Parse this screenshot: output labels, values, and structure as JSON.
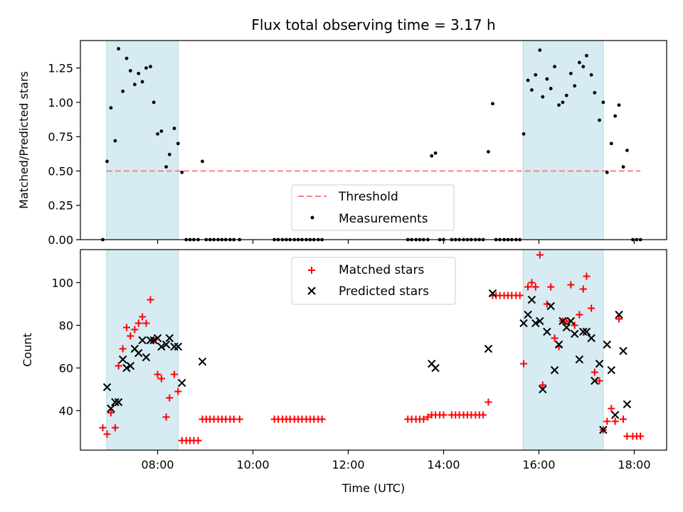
{
  "chart_data": {
    "type": "scatter",
    "title": "Flux total observing time = 3.17 h",
    "xlabel": "Time (UTC)",
    "x_ticks": [
      "08:00",
      "10:00",
      "12:00",
      "14:00",
      "16:00",
      "18:00"
    ],
    "x_tick_hours": [
      8,
      10,
      12,
      14,
      16,
      18
    ],
    "xlim_hours": [
      6.38,
      18.68
    ],
    "shaded_intervals_hours": [
      [
        6.93,
        8.43
      ],
      [
        15.67,
        17.35
      ]
    ],
    "shade_color": "#add8e6",
    "top_panel": {
      "ylabel": "Matched/Predicted stars",
      "ylim": [
        0,
        1.45
      ],
      "y_ticks": [
        "0.00",
        "0.25",
        "0.50",
        "0.75",
        "1.00",
        "1.25"
      ],
      "y_tick_values": [
        0,
        0.25,
        0.5,
        0.75,
        1.0,
        1.25
      ],
      "threshold": {
        "name": "Threshold",
        "value": 0.5,
        "x_range": [
          6.93,
          18.13
        ],
        "color": "#ff8080"
      },
      "measurements_name": "Measurements",
      "measurements_color": "#000000",
      "legend_position": "lower center",
      "measurements": [
        [
          6.85,
          0
        ],
        [
          6.94,
          0.57
        ],
        [
          7.02,
          0.96
        ],
        [
          7.11,
          0.72
        ],
        [
          7.18,
          1.39
        ],
        [
          7.27,
          1.08
        ],
        [
          7.35,
          1.32
        ],
        [
          7.43,
          1.23
        ],
        [
          7.52,
          1.13
        ],
        [
          7.6,
          1.21
        ],
        [
          7.68,
          1.15
        ],
        [
          7.76,
          1.25
        ],
        [
          7.85,
          1.26
        ],
        [
          7.92,
          1.0
        ],
        [
          8.0,
          0.77
        ],
        [
          8.08,
          0.79
        ],
        [
          8.18,
          0.53
        ],
        [
          8.25,
          0.62
        ],
        [
          8.35,
          0.81
        ],
        [
          8.43,
          0.7
        ],
        [
          8.51,
          0.49
        ],
        [
          8.6,
          0
        ],
        [
          8.68,
          0
        ],
        [
          8.76,
          0
        ],
        [
          8.85,
          0
        ],
        [
          8.94,
          0.57
        ],
        [
          9.02,
          0
        ],
        [
          9.1,
          0
        ],
        [
          9.18,
          0
        ],
        [
          9.27,
          0
        ],
        [
          9.35,
          0
        ],
        [
          9.43,
          0
        ],
        [
          9.52,
          0
        ],
        [
          9.6,
          0
        ],
        [
          9.72,
          0
        ],
        [
          10.45,
          0
        ],
        [
          10.53,
          0
        ],
        [
          10.62,
          0
        ],
        [
          10.7,
          0
        ],
        [
          10.78,
          0
        ],
        [
          10.87,
          0
        ],
        [
          10.95,
          0
        ],
        [
          11.03,
          0
        ],
        [
          11.12,
          0
        ],
        [
          11.2,
          0
        ],
        [
          11.28,
          0
        ],
        [
          11.37,
          0
        ],
        [
          11.45,
          0
        ],
        [
          13.25,
          0
        ],
        [
          13.33,
          0
        ],
        [
          13.42,
          0
        ],
        [
          13.5,
          0
        ],
        [
          13.58,
          0
        ],
        [
          13.67,
          0
        ],
        [
          13.75,
          0.61
        ],
        [
          13.83,
          0.63
        ],
        [
          13.92,
          0
        ],
        [
          14.0,
          0
        ],
        [
          14.17,
          0
        ],
        [
          14.25,
          0
        ],
        [
          14.33,
          0
        ],
        [
          14.42,
          0
        ],
        [
          14.5,
          0
        ],
        [
          14.58,
          0
        ],
        [
          14.67,
          0
        ],
        [
          14.75,
          0
        ],
        [
          14.83,
          0
        ],
        [
          14.94,
          0.64
        ],
        [
          15.03,
          0.99
        ],
        [
          15.1,
          0
        ],
        [
          15.18,
          0
        ],
        [
          15.27,
          0
        ],
        [
          15.35,
          0
        ],
        [
          15.43,
          0
        ],
        [
          15.52,
          0
        ],
        [
          15.6,
          0
        ],
        [
          15.68,
          0.77
        ],
        [
          15.77,
          1.16
        ],
        [
          15.85,
          1.09
        ],
        [
          15.93,
          1.2
        ],
        [
          16.02,
          1.38
        ],
        [
          16.08,
          1.04
        ],
        [
          16.17,
          1.17
        ],
        [
          16.25,
          1.1
        ],
        [
          16.33,
          1.26
        ],
        [
          16.42,
          0.98
        ],
        [
          16.5,
          1.0
        ],
        [
          16.58,
          1.05
        ],
        [
          16.67,
          1.21
        ],
        [
          16.75,
          1.12
        ],
        [
          16.85,
          1.29
        ],
        [
          16.93,
          1.26
        ],
        [
          17.0,
          1.34
        ],
        [
          17.1,
          1.2
        ],
        [
          17.17,
          1.07
        ],
        [
          17.27,
          0.87
        ],
        [
          17.35,
          1.0
        ],
        [
          17.43,
          0.49
        ],
        [
          17.52,
          0.7
        ],
        [
          17.6,
          0.9
        ],
        [
          17.68,
          0.98
        ],
        [
          17.77,
          0.53
        ],
        [
          17.85,
          0.65
        ],
        [
          17.97,
          0
        ],
        [
          18.05,
          0
        ],
        [
          18.13,
          0
        ]
      ]
    },
    "bottom_panel": {
      "ylabel": "Count",
      "ylim": [
        21.5,
        115.5
      ],
      "y_ticks": [
        "40",
        "60",
        "80",
        "100"
      ],
      "y_tick_values": [
        40,
        60,
        80,
        100
      ],
      "legend_position": "upper center",
      "matched_name": "Matched stars",
      "matched_color": "#ff0000",
      "predicted_name": "Predicted stars",
      "predicted_color": "#000000",
      "matched": [
        [
          6.85,
          32
        ],
        [
          6.94,
          29
        ],
        [
          7.02,
          39
        ],
        [
          7.11,
          32
        ],
        [
          7.18,
          61
        ],
        [
          7.27,
          69
        ],
        [
          7.35,
          79
        ],
        [
          7.43,
          75
        ],
        [
          7.52,
          78
        ],
        [
          7.6,
          81
        ],
        [
          7.68,
          84
        ],
        [
          7.76,
          81
        ],
        [
          7.85,
          92
        ],
        [
          7.92,
          73
        ],
        [
          8.0,
          57
        ],
        [
          8.08,
          55
        ],
        [
          8.18,
          37
        ],
        [
          8.25,
          46
        ],
        [
          8.35,
          57
        ],
        [
          8.43,
          49
        ],
        [
          8.51,
          26
        ],
        [
          8.6,
          26
        ],
        [
          8.68,
          26
        ],
        [
          8.76,
          26
        ],
        [
          8.85,
          26
        ],
        [
          8.94,
          36
        ],
        [
          9.02,
          36
        ],
        [
          9.1,
          36
        ],
        [
          9.18,
          36
        ],
        [
          9.27,
          36
        ],
        [
          9.35,
          36
        ],
        [
          9.43,
          36
        ],
        [
          9.52,
          36
        ],
        [
          9.6,
          36
        ],
        [
          9.72,
          36
        ],
        [
          10.45,
          36
        ],
        [
          10.53,
          36
        ],
        [
          10.62,
          36
        ],
        [
          10.7,
          36
        ],
        [
          10.78,
          36
        ],
        [
          10.87,
          36
        ],
        [
          10.95,
          36
        ],
        [
          11.03,
          36
        ],
        [
          11.12,
          36
        ],
        [
          11.2,
          36
        ],
        [
          11.28,
          36
        ],
        [
          11.37,
          36
        ],
        [
          11.45,
          36
        ],
        [
          13.25,
          36
        ],
        [
          13.33,
          36
        ],
        [
          13.42,
          36
        ],
        [
          13.5,
          36
        ],
        [
          13.58,
          36
        ],
        [
          13.67,
          37
        ],
        [
          13.75,
          38
        ],
        [
          13.83,
          38
        ],
        [
          13.92,
          38
        ],
        [
          14.0,
          38
        ],
        [
          14.17,
          38
        ],
        [
          14.25,
          38
        ],
        [
          14.33,
          38
        ],
        [
          14.42,
          38
        ],
        [
          14.5,
          38
        ],
        [
          14.58,
          38
        ],
        [
          14.67,
          38
        ],
        [
          14.75,
          38
        ],
        [
          14.83,
          38
        ],
        [
          14.94,
          44
        ],
        [
          15.03,
          94
        ],
        [
          15.1,
          94
        ],
        [
          15.18,
          94
        ],
        [
          15.27,
          94
        ],
        [
          15.35,
          94
        ],
        [
          15.43,
          94
        ],
        [
          15.52,
          94
        ],
        [
          15.6,
          94
        ],
        [
          15.68,
          62
        ],
        [
          15.77,
          98
        ],
        [
          15.85,
          100
        ],
        [
          15.93,
          98
        ],
        [
          16.02,
          113
        ],
        [
          16.08,
          52
        ],
        [
          16.17,
          90
        ],
        [
          16.25,
          98
        ],
        [
          16.33,
          74
        ],
        [
          16.42,
          70
        ],
        [
          16.5,
          82
        ],
        [
          16.58,
          82
        ],
        [
          16.67,
          99
        ],
        [
          16.75,
          80
        ],
        [
          16.85,
          85
        ],
        [
          16.93,
          97
        ],
        [
          17.0,
          103
        ],
        [
          17.1,
          88
        ],
        [
          17.17,
          58
        ],
        [
          17.27,
          54
        ],
        [
          17.35,
          31
        ],
        [
          17.43,
          35
        ],
        [
          17.52,
          41
        ],
        [
          17.6,
          35
        ],
        [
          17.68,
          83
        ],
        [
          17.77,
          36
        ],
        [
          17.85,
          28
        ],
        [
          17.97,
          28
        ],
        [
          18.05,
          28
        ],
        [
          18.13,
          28
        ]
      ],
      "predicted": [
        [
          6.94,
          51
        ],
        [
          7.02,
          41
        ],
        [
          7.11,
          44
        ],
        [
          7.18,
          44
        ],
        [
          7.27,
          64
        ],
        [
          7.35,
          60
        ],
        [
          7.43,
          61
        ],
        [
          7.52,
          69
        ],
        [
          7.6,
          67
        ],
        [
          7.68,
          73
        ],
        [
          7.76,
          65
        ],
        [
          7.85,
          73
        ],
        [
          7.92,
          73
        ],
        [
          8.0,
          74
        ],
        [
          8.08,
          70
        ],
        [
          8.18,
          71
        ],
        [
          8.25,
          74
        ],
        [
          8.35,
          70
        ],
        [
          8.43,
          70
        ],
        [
          8.51,
          53
        ],
        [
          8.94,
          63
        ],
        [
          13.75,
          62
        ],
        [
          13.83,
          60
        ],
        [
          14.94,
          69
        ],
        [
          15.03,
          95
        ],
        [
          15.68,
          81
        ],
        [
          15.77,
          85
        ],
        [
          15.85,
          92
        ],
        [
          15.93,
          81
        ],
        [
          16.02,
          82
        ],
        [
          16.08,
          50
        ],
        [
          16.17,
          77
        ],
        [
          16.25,
          89
        ],
        [
          16.33,
          59
        ],
        [
          16.42,
          71
        ],
        [
          16.5,
          82
        ],
        [
          16.58,
          79
        ],
        [
          16.67,
          82
        ],
        [
          16.75,
          76
        ],
        [
          16.85,
          64
        ],
        [
          16.93,
          77
        ],
        [
          17.0,
          77
        ],
        [
          17.1,
          74
        ],
        [
          17.17,
          54
        ],
        [
          17.27,
          62
        ],
        [
          17.35,
          31
        ],
        [
          17.43,
          71
        ],
        [
          17.52,
          59
        ],
        [
          17.6,
          38
        ],
        [
          17.68,
          85
        ],
        [
          17.77,
          68
        ],
        [
          17.85,
          43
        ]
      ]
    }
  }
}
